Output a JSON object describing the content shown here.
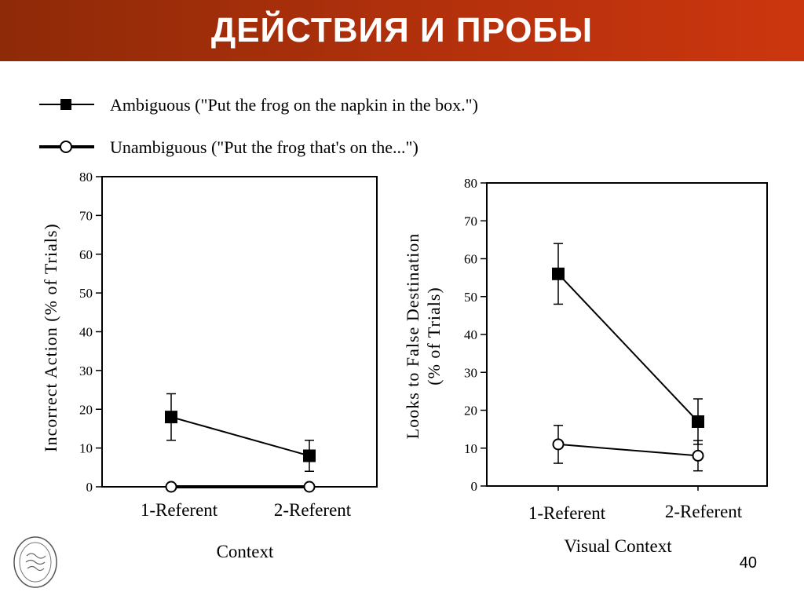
{
  "slide": {
    "title": "ДЕЙСТВИЯ И ПРОБЫ",
    "page_number": "40",
    "banner_colors": [
      "#8e2a08",
      "#cc360e"
    ]
  },
  "logo": {
    "label": "THE CITY UNIVERSITY OF NEW YORK — The College of Staten Island"
  },
  "legend": {
    "items": [
      {
        "label": "Ambiguous (\"Put the frog on the napkin in the box.\")",
        "marker": "filled-square"
      },
      {
        "label": "Unambiguous (\"Put the frog that's on the...\")",
        "marker": "open-circle"
      }
    ]
  },
  "chart_data": [
    {
      "type": "line",
      "xlabel": "Context",
      "ylabel": "Incorrect Action (% of Trials)",
      "ylim": [
        0,
        80
      ],
      "yticks": [
        0,
        10,
        20,
        30,
        40,
        50,
        60,
        70,
        80
      ],
      "categories": [
        "1-Referent",
        "2-Referent"
      ],
      "series": [
        {
          "name": "Ambiguous",
          "marker": "filled-square",
          "values": [
            18,
            8
          ],
          "error_low": [
            12,
            4
          ],
          "error_high": [
            24,
            12
          ]
        },
        {
          "name": "Unambiguous",
          "marker": "open-circle",
          "values": [
            0,
            0
          ]
        }
      ]
    },
    {
      "type": "line",
      "xlabel": "Visual Context",
      "ylabel": "Looks to False Destination (% of Trials)",
      "ylabel_lines": [
        "Looks to False Destination",
        "(% of Trials)"
      ],
      "ylim": [
        0,
        80
      ],
      "yticks": [
        0,
        10,
        20,
        30,
        40,
        50,
        60,
        70,
        80
      ],
      "categories": [
        "1-Referent",
        "2-Referent"
      ],
      "series": [
        {
          "name": "Ambiguous",
          "marker": "filled-square",
          "values": [
            56,
            17
          ],
          "error_low": [
            48,
            11
          ],
          "error_high": [
            64,
            23
          ]
        },
        {
          "name": "Unambiguous",
          "marker": "open-circle",
          "values": [
            11,
            8
          ],
          "error_low": [
            6,
            4
          ],
          "error_high": [
            16,
            12
          ]
        }
      ]
    }
  ]
}
